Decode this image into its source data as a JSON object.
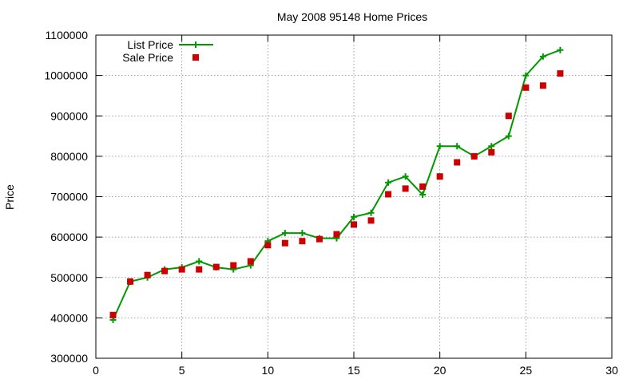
{
  "chart_data": {
    "type": "line",
    "title": "May 2008 95148 Home Prices",
    "xlabel": "",
    "ylabel": "Price",
    "xlim": [
      0,
      30
    ],
    "ylim": [
      300000,
      1100000
    ],
    "x_ticks": [
      0,
      5,
      10,
      15,
      20,
      25,
      30
    ],
    "y_ticks": [
      300000,
      400000,
      500000,
      600000,
      700000,
      800000,
      900000,
      1000000,
      1100000
    ],
    "grid": true,
    "legend_position": "top-left",
    "series": [
      {
        "name": "List Price",
        "style": "line-points",
        "marker": "plus",
        "color": "#009900",
        "x": [
          1,
          2,
          3,
          4,
          5,
          6,
          7,
          8,
          9,
          10,
          11,
          12,
          13,
          14,
          15,
          16,
          17,
          18,
          19,
          20,
          21,
          22,
          23,
          24,
          25,
          26,
          27
        ],
        "y": [
          395000,
          490000,
          500000,
          520000,
          525000,
          540000,
          525000,
          520000,
          530000,
          590000,
          610000,
          610000,
          597000,
          597000,
          650000,
          660000,
          735000,
          750000,
          705000,
          825000,
          825000,
          800000,
          825000,
          850000,
          1000000,
          1047000,
          1063000
        ]
      },
      {
        "name": "Sale Price",
        "style": "points",
        "marker": "square",
        "color": "#cc0000",
        "x": [
          1,
          2,
          3,
          4,
          5,
          6,
          7,
          8,
          9,
          10,
          11,
          12,
          13,
          14,
          15,
          16,
          17,
          18,
          19,
          20,
          21,
          22,
          23,
          24,
          25,
          26,
          27
        ],
        "y": [
          407000,
          490000,
          506000,
          516000,
          520000,
          520000,
          526000,
          530000,
          540000,
          580000,
          585000,
          590000,
          595000,
          607000,
          631000,
          641000,
          706000,
          720000,
          725000,
          750000,
          785000,
          800000,
          810000,
          900000,
          970000,
          975000,
          1005000
        ]
      }
    ]
  }
}
